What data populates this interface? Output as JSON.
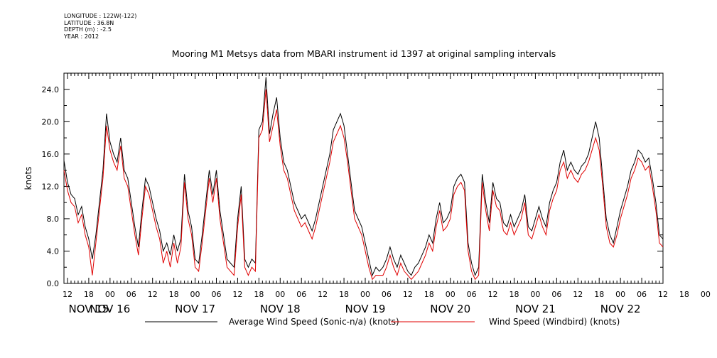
{
  "meta": {
    "longitude": "LONGITUDE : 122W(-122)",
    "latitude": "LATITUDE : 36.8N",
    "depth": "DEPTH (m) : -2.5",
    "year": "YEAR : 2012"
  },
  "chart_data": {
    "type": "line",
    "title": "Mooring M1 Metsys data from MBARI instrument id 1397 at original sampling intervals",
    "ylabel": "knots",
    "xlabel": "",
    "ylim": [
      0,
      26
    ],
    "xlim": [
      11,
      180
    ],
    "yticks": [
      0.0,
      4.0,
      8.0,
      12.0,
      16.0,
      20.0,
      24.0
    ],
    "ytick_labels": [
      "0.0",
      "4.0",
      "8.0",
      "12.0",
      "16.0",
      "20.0",
      "24.0"
    ],
    "hour_ticks": [
      12,
      18,
      0,
      6,
      12,
      18,
      0,
      6,
      12,
      18,
      0,
      6,
      12,
      18,
      0,
      6,
      12,
      18,
      0,
      6,
      12,
      18,
      0,
      6,
      12,
      18,
      0,
      6,
      12,
      18,
      0,
      6,
      12
    ],
    "day_labels": [
      "NOV 15",
      "NOV 16",
      "NOV 17",
      "NOV 18",
      "NOV 19",
      "NOV 20",
      "NOV 21",
      "NOV 22"
    ],
    "grid": false,
    "legend_position": "bottom",
    "series": [
      {
        "name": "Average Wind Speed (Sonic-n/a) (knots)",
        "color": "#000000",
        "x_hours_from_nov15_0000": [
          11,
          12,
          13,
          14,
          15,
          16,
          17,
          18,
          19,
          20,
          21,
          22,
          23,
          24,
          25,
          26,
          27,
          28,
          29,
          30,
          31,
          32,
          33,
          34,
          35,
          36,
          37,
          38,
          39,
          40,
          41,
          42,
          43,
          44,
          45,
          46,
          47,
          48,
          49,
          50,
          51,
          52,
          53,
          54,
          55,
          56,
          57,
          58,
          59,
          60,
          61,
          62,
          63,
          64,
          65,
          66,
          67,
          68,
          69,
          70,
          71,
          72,
          73,
          74,
          75,
          76,
          77,
          78,
          79,
          80,
          81,
          82,
          83,
          84,
          85,
          86,
          87,
          88,
          89,
          90,
          91,
          92,
          93,
          94,
          95,
          96,
          97,
          98,
          99,
          100,
          101,
          102,
          103,
          104,
          105,
          106,
          107,
          108,
          109,
          110,
          111,
          112,
          113,
          114,
          115,
          116,
          117,
          118,
          119,
          120,
          121,
          122,
          123,
          124,
          125,
          126,
          127,
          128,
          129,
          130,
          131,
          132,
          133,
          134,
          135,
          136,
          137,
          138,
          139,
          140,
          141,
          142,
          143,
          144,
          145,
          146,
          147,
          148,
          149,
          150,
          151,
          152,
          153,
          154,
          155,
          156,
          157,
          158,
          159,
          160,
          161,
          162,
          163,
          164,
          165,
          166,
          167,
          168,
          169,
          170,
          171,
          172,
          173,
          174,
          175,
          176,
          177,
          178,
          179,
          180
        ],
        "values": [
          15.2,
          12.5,
          11.0,
          10.5,
          8.5,
          9.5,
          7.0,
          5.5,
          3.0,
          6.0,
          10.0,
          14.0,
          21.0,
          17.5,
          16.0,
          15.0,
          18.0,
          14.0,
          13.0,
          10.0,
          7.0,
          4.5,
          9.0,
          13.0,
          12.0,
          10.0,
          8.0,
          6.5,
          4.0,
          5.0,
          3.5,
          6.0,
          4.0,
          5.5,
          13.5,
          9.0,
          7.0,
          3.0,
          2.5,
          6.0,
          10.0,
          14.0,
          11.0,
          14.0,
          9.0,
          6.0,
          3.0,
          2.5,
          2.0,
          8.0,
          12.0,
          3.0,
          2.0,
          3.0,
          2.5,
          19.0,
          20.0,
          25.5,
          18.5,
          21.0,
          23.0,
          18.0,
          15.0,
          14.0,
          12.0,
          10.0,
          9.0,
          8.0,
          8.5,
          7.5,
          6.5,
          8.0,
          10.0,
          12.0,
          14.0,
          16.0,
          19.0,
          20.0,
          21.0,
          19.5,
          16.0,
          12.5,
          9.0,
          8.0,
          7.0,
          5.0,
          3.0,
          1.0,
          2.0,
          1.5,
          2.0,
          3.0,
          4.5,
          3.0,
          2.0,
          3.5,
          2.5,
          1.5,
          1.0,
          2.0,
          2.5,
          3.5,
          4.5,
          6.0,
          5.0,
          8.0,
          10.0,
          7.5,
          8.0,
          9.0,
          12.0,
          13.0,
          13.5,
          12.5,
          5.0,
          2.5,
          1.0,
          2.0,
          13.5,
          10.0,
          7.5,
          12.5,
          10.5,
          10.0,
          7.5,
          7.0,
          8.5,
          7.0,
          8.0,
          9.0,
          11.0,
          7.0,
          6.5,
          8.0,
          9.5,
          8.0,
          7.0,
          10.0,
          11.5,
          12.5,
          15.0,
          16.5,
          14.0,
          15.0,
          14.0,
          13.5,
          14.5,
          15.0,
          16.0,
          18.0,
          20.0,
          18.0,
          13.0,
          8.0,
          6.0,
          5.0,
          7.0,
          9.0,
          10.5,
          12.0,
          14.0,
          15.0,
          16.5,
          16.0,
          15.0,
          15.5,
          13.0,
          10.0,
          6.0,
          5.5
        ]
      },
      {
        "name": "Wind Speed (Windbird) (knots)",
        "color": "#e00000",
        "x_hours_from_nov15_0000": [
          11,
          12,
          13,
          14,
          15,
          16,
          17,
          18,
          19,
          20,
          21,
          22,
          23,
          24,
          25,
          26,
          27,
          28,
          29,
          30,
          31,
          32,
          33,
          34,
          35,
          36,
          37,
          38,
          39,
          40,
          41,
          42,
          43,
          44,
          45,
          46,
          47,
          48,
          49,
          50,
          51,
          52,
          53,
          54,
          55,
          56,
          57,
          58,
          59,
          60,
          61,
          62,
          63,
          64,
          65,
          66,
          67,
          68,
          69,
          70,
          71,
          72,
          73,
          74,
          75,
          76,
          77,
          78,
          79,
          80,
          81,
          82,
          83,
          84,
          85,
          86,
          87,
          88,
          89,
          90,
          91,
          92,
          93,
          94,
          95,
          96,
          97,
          98,
          99,
          100,
          101,
          102,
          103,
          104,
          105,
          106,
          107,
          108,
          109,
          110,
          111,
          112,
          113,
          114,
          115,
          116,
          117,
          118,
          119,
          120,
          121,
          122,
          123,
          124,
          125,
          126,
          127,
          128,
          129,
          130,
          131,
          132,
          133,
          134,
          135,
          136,
          137,
          138,
          139,
          140,
          141,
          142,
          143,
          144,
          145,
          146,
          147,
          148,
          149,
          150,
          151,
          152,
          153,
          154,
          155,
          156,
          157,
          158,
          159,
          160,
          161,
          162,
          163,
          164,
          165,
          166,
          167,
          168,
          169,
          170,
          171,
          172,
          173,
          174,
          175,
          176,
          177,
          178,
          179,
          180
        ],
        "values": [
          14.0,
          11.5,
          10.0,
          9.5,
          7.5,
          8.5,
          6.0,
          4.5,
          1.0,
          5.0,
          9.0,
          13.0,
          19.5,
          16.5,
          15.0,
          14.0,
          17.0,
          13.0,
          12.0,
          9.0,
          6.0,
          3.5,
          8.0,
          12.0,
          11.0,
          9.0,
          7.0,
          5.5,
          2.5,
          4.0,
          2.0,
          5.0,
          2.5,
          4.5,
          12.5,
          8.0,
          6.0,
          2.0,
          1.5,
          5.0,
          9.0,
          13.0,
          10.0,
          13.0,
          8.0,
          5.0,
          2.0,
          1.5,
          1.0,
          7.0,
          11.0,
          2.0,
          1.0,
          2.0,
          1.5,
          18.0,
          19.0,
          24.0,
          17.5,
          19.5,
          21.5,
          17.0,
          14.0,
          13.0,
          11.0,
          9.0,
          8.0,
          7.0,
          7.5,
          6.5,
          5.5,
          7.0,
          9.0,
          11.0,
          13.0,
          15.0,
          17.5,
          18.5,
          19.5,
          18.0,
          15.0,
          11.5,
          8.0,
          7.0,
          6.0,
          4.0,
          2.0,
          0.5,
          1.0,
          1.0,
          1.0,
          2.0,
          3.5,
          2.0,
          1.0,
          2.5,
          1.5,
          1.0,
          0.5,
          1.0,
          1.5,
          2.5,
          3.5,
          5.0,
          4.0,
          7.0,
          9.0,
          6.5,
          7.0,
          8.0,
          11.0,
          12.0,
          12.5,
          11.5,
          4.0,
          1.5,
          0.5,
          1.0,
          12.5,
          9.0,
          6.5,
          11.5,
          9.5,
          9.0,
          6.5,
          6.0,
          7.5,
          6.0,
          7.0,
          8.0,
          10.0,
          6.0,
          5.5,
          7.0,
          8.5,
          7.0,
          6.0,
          9.0,
          10.5,
          11.5,
          14.0,
          15.0,
          13.0,
          14.0,
          13.0,
          12.5,
          13.5,
          14.0,
          15.0,
          16.5,
          18.0,
          16.5,
          12.0,
          7.0,
          5.0,
          4.5,
          6.0,
          8.0,
          9.5,
          11.0,
          13.0,
          14.0,
          15.5,
          15.0,
          14.0,
          14.5,
          12.0,
          9.0,
          5.0,
          4.5
        ]
      }
    ]
  }
}
